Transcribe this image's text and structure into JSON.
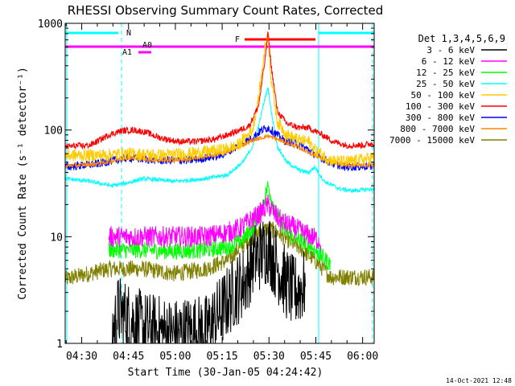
{
  "chart_data": {
    "type": "line",
    "title": "RHESSI Observing Summary Count Rates, Corrected",
    "xlabel": "Start Time (30-Jan-05 04:24:42)",
    "ylabel": "Corrected Count Rate (s⁻¹ detector⁻¹)",
    "yscale": "log",
    "ylim": [
      1,
      1000
    ],
    "xlim_minutes": [
      0,
      99
    ],
    "y_ticks": [
      "1",
      "10",
      "100",
      "1000"
    ],
    "x_ticks": [
      {
        "label": "04:30",
        "t": 5.3
      },
      {
        "label": "04:45",
        "t": 20.3
      },
      {
        "label": "05:00",
        "t": 35.3
      },
      {
        "label": "05:15",
        "t": 50.3
      },
      {
        "label": "05:30",
        "t": 65.3
      },
      {
        "label": "05:45",
        "t": 80.3
      },
      {
        "label": "06:00",
        "t": 95.3
      }
    ],
    "legend_title": "Det 1,3,4,5,6,9",
    "legend_position": "right",
    "series": [
      {
        "name": "3 - 6 keV",
        "color": "#000000",
        "noise": 0.35,
        "t": [
          15,
          17,
          25,
          30,
          35,
          40,
          45,
          50,
          54,
          58,
          60,
          63,
          65,
          67,
          70,
          73,
          77
        ],
        "v": [
          1.2,
          2.0,
          1.4,
          1.3,
          1.2,
          1.3,
          1.3,
          2.0,
          3.0,
          4.0,
          6.0,
          7.0,
          8.0,
          6.0,
          4.0,
          3.0,
          3.5
        ]
      },
      {
        "name": "6 - 12 keV",
        "color": "#ff00ff",
        "noise": 0.1,
        "t": [
          14,
          25,
          35,
          45,
          52,
          56,
          59,
          62,
          65,
          68,
          71,
          74,
          76,
          79,
          82
        ],
        "v": [
          10,
          10,
          10,
          10,
          11,
          12,
          14,
          16,
          20,
          15,
          13,
          12,
          11,
          10,
          9
        ]
      },
      {
        "name": "12 - 25 keV",
        "color": "#00ff00",
        "noise": 0.08,
        "t": [
          14,
          25,
          35,
          45,
          52,
          56,
          59,
          62,
          65,
          67,
          70,
          73,
          76,
          79,
          85
        ],
        "v": [
          7.5,
          7.5,
          7.3,
          7.5,
          8.0,
          9.0,
          11,
          15,
          30,
          18,
          12,
          10,
          9,
          8,
          5.5
        ]
      },
      {
        "name": "25 - 50 keV",
        "color": "#00ffff",
        "noise": 0.02,
        "t": [
          0,
          8,
          15,
          20,
          25,
          35,
          45,
          52,
          57,
          60,
          62,
          64,
          65,
          66,
          68,
          71,
          75,
          78,
          80,
          83,
          88,
          92,
          99
        ],
        "v": [
          35,
          33,
          30,
          32,
          35,
          33,
          35,
          38,
          50,
          70,
          110,
          200,
          250,
          150,
          70,
          50,
          42,
          40,
          45,
          33,
          28,
          27,
          28
        ]
      },
      {
        "name": "50 - 100 keV",
        "color": "#ffcc00",
        "noise": 0.06,
        "t": [
          0,
          10,
          20,
          30,
          40,
          50,
          55,
          60,
          62,
          64,
          65,
          66,
          68,
          71,
          75,
          78,
          80,
          85,
          90,
          99
        ],
        "v": [
          58,
          58,
          60,
          58,
          60,
          65,
          70,
          100,
          200,
          600,
          800,
          300,
          120,
          90,
          80,
          78,
          65,
          52,
          50,
          55
        ]
      },
      {
        "name": "100 - 300 keV",
        "color": "#ff0000",
        "noise": 0.03,
        "t": [
          0,
          8,
          14,
          18,
          22,
          26,
          30,
          36,
          42,
          48,
          52,
          56,
          59,
          62,
          64,
          65,
          66,
          68,
          71,
          75,
          78,
          80,
          83,
          86,
          90,
          95,
          99
        ],
        "v": [
          70,
          72,
          90,
          98,
          100,
          95,
          85,
          78,
          78,
          82,
          90,
          100,
          110,
          170,
          450,
          820,
          400,
          150,
          115,
          105,
          105,
          98,
          88,
          78,
          72,
          72,
          75
        ]
      },
      {
        "name": "300 - 800 keV",
        "color": "#0000ff",
        "noise": 0.04,
        "t": [
          0,
          10,
          20,
          30,
          40,
          50,
          55,
          60,
          63,
          65,
          67,
          70,
          74,
          78,
          82,
          86,
          90,
          99
        ],
        "v": [
          45,
          48,
          55,
          52,
          52,
          58,
          70,
          85,
          100,
          105,
          95,
          80,
          75,
          65,
          55,
          48,
          45,
          46
        ]
      },
      {
        "name": "800 - 7000 keV",
        "color": "#ff8800",
        "noise": 0.02,
        "t": [
          0,
          10,
          20,
          30,
          40,
          50,
          55,
          60,
          65,
          70,
          75,
          80,
          85,
          90,
          99
        ],
        "v": [
          46,
          48,
          55,
          52,
          53,
          60,
          68,
          80,
          88,
          78,
          68,
          58,
          50,
          47,
          47
        ]
      },
      {
        "name": "7000 - 15000 keV",
        "color": "#808000",
        "noise": 0.08,
        "t": [
          0,
          14,
          25,
          35,
          45,
          52,
          56,
          60,
          63,
          65,
          68,
          72,
          76,
          80,
          85,
          99
        ],
        "v": [
          4.0,
          5.0,
          5.0,
          4.5,
          5.0,
          6.0,
          8.0,
          10,
          11,
          12,
          11,
          9,
          7.5,
          6,
          4.2,
          4.2
        ]
      }
    ],
    "annotations": [
      {
        "label": "N",
        "color": "#00ffff"
      },
      {
        "label": "F",
        "color": "#ff0000"
      },
      {
        "label": "A0",
        "color": "#ff00ff"
      },
      {
        "label": "A1",
        "color": "#ff00ff"
      }
    ],
    "footer_date": "14-Oct-2021 12:48"
  }
}
